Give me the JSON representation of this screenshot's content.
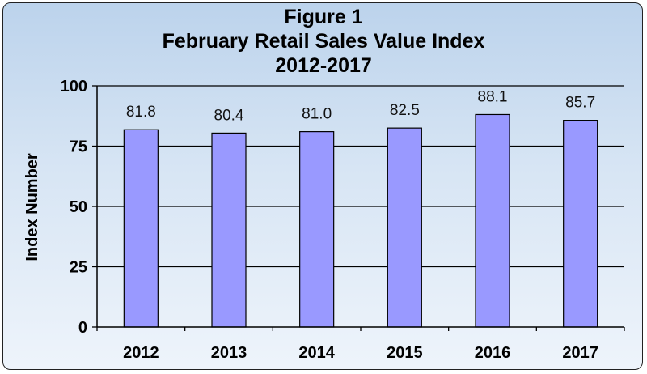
{
  "chart_data": {
    "type": "bar",
    "title": "Figure 1",
    "subtitle": "February Retail Sales Value Index",
    "subtitle2": "2012-2017",
    "ylabel": "Index Number",
    "xlabel": "",
    "categories": [
      "2012",
      "2013",
      "2014",
      "2015",
      "2016",
      "2017"
    ],
    "values": [
      81.8,
      80.4,
      81.0,
      82.5,
      88.1,
      85.7
    ],
    "data_labels": [
      "81.8",
      "80.4",
      "81.0",
      "82.5",
      "88.1",
      "85.7"
    ],
    "ylim": [
      0,
      100
    ],
    "yticks": [
      0,
      25,
      50,
      75,
      100
    ],
    "ytick_labels": [
      "0",
      "25",
      "50",
      "75",
      "100"
    ],
    "grid": true,
    "legend": "none",
    "colors": {
      "bar_fill": "#9999ff",
      "bar_stroke": "#000000",
      "background_top": "#bcd3ec",
      "background_bottom": "#eef4fb",
      "gridline": "#000000"
    }
  }
}
